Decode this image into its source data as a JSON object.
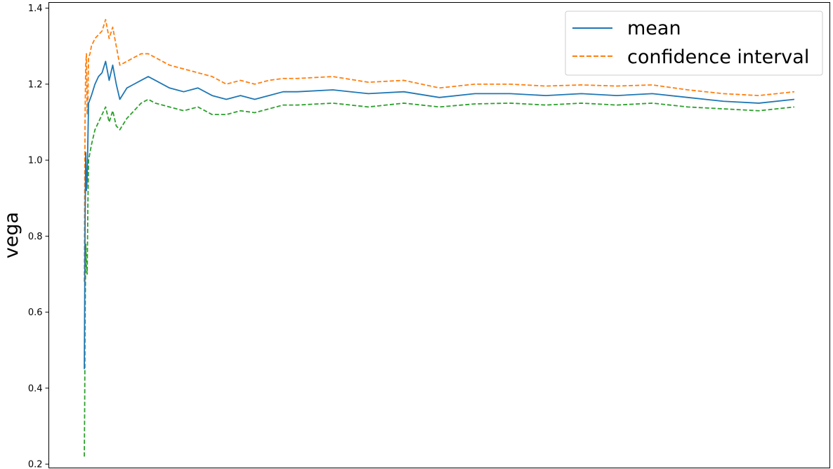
{
  "chart_data": {
    "type": "line",
    "title": "",
    "xlabel": "",
    "ylabel": "vega",
    "ylim": [
      0.19,
      1.415
    ],
    "xlim": [
      -500,
      10500
    ],
    "yticks": [
      0.2,
      0.4,
      0.6,
      0.8,
      1.0,
      1.2,
      1.4
    ],
    "ytick_labels": [
      "0.2",
      "0.4",
      "0.6",
      "0.8",
      "1.0",
      "1.2",
      "1.4"
    ],
    "xticks_visible": false,
    "grid": false,
    "legend": {
      "position": "top-right",
      "entries": [
        "mean",
        "confidence interval"
      ]
    },
    "x": [
      0,
      5,
      10,
      20,
      30,
      40,
      50,
      60,
      80,
      100,
      150,
      200,
      250,
      300,
      350,
      400,
      450,
      500,
      600,
      700,
      800,
      900,
      1000,
      1200,
      1400,
      1600,
      1800,
      2000,
      2200,
      2400,
      2600,
      2800,
      3000,
      3500,
      4000,
      4500,
      5000,
      5500,
      6000,
      6500,
      7000,
      7500,
      8000,
      8500,
      9000,
      9500,
      10000
    ],
    "series": [
      {
        "name": "mean",
        "style": "solid",
        "color": "#1f77b4",
        "values": [
          0.45,
          0.62,
          0.82,
          1.02,
          0.92,
          0.95,
          1.05,
          1.15,
          1.16,
          1.17,
          1.2,
          1.22,
          1.23,
          1.26,
          1.21,
          1.25,
          1.2,
          1.16,
          1.19,
          1.2,
          1.21,
          1.22,
          1.21,
          1.19,
          1.18,
          1.19,
          1.17,
          1.16,
          1.17,
          1.16,
          1.17,
          1.18,
          1.18,
          1.185,
          1.175,
          1.18,
          1.165,
          1.175,
          1.175,
          1.17,
          1.175,
          1.17,
          1.175,
          1.165,
          1.155,
          1.15,
          1.16
        ]
      },
      {
        "name": "confidence interval",
        "style": "dashed",
        "color": "#ff7f0e",
        "values": [
          0.68,
          0.88,
          1.1,
          1.25,
          1.28,
          1.12,
          1.15,
          1.27,
          1.28,
          1.3,
          1.32,
          1.33,
          1.34,
          1.37,
          1.32,
          1.35,
          1.3,
          1.25,
          1.26,
          1.27,
          1.28,
          1.28,
          1.27,
          1.25,
          1.24,
          1.23,
          1.22,
          1.2,
          1.21,
          1.2,
          1.21,
          1.215,
          1.215,
          1.22,
          1.205,
          1.21,
          1.19,
          1.2,
          1.2,
          1.195,
          1.198,
          1.195,
          1.198,
          1.185,
          1.175,
          1.17,
          1.18
        ]
      },
      {
        "name": "",
        "style": "dashed",
        "color": "#2ca02c",
        "values": [
          0.22,
          0.35,
          0.55,
          0.78,
          0.72,
          0.7,
          0.88,
          1.0,
          1.02,
          1.04,
          1.08,
          1.1,
          1.12,
          1.14,
          1.1,
          1.13,
          1.09,
          1.08,
          1.11,
          1.13,
          1.15,
          1.16,
          1.15,
          1.14,
          1.13,
          1.14,
          1.12,
          1.12,
          1.13,
          1.125,
          1.135,
          1.145,
          1.145,
          1.15,
          1.14,
          1.15,
          1.14,
          1.148,
          1.15,
          1.145,
          1.15,
          1.145,
          1.15,
          1.14,
          1.135,
          1.13,
          1.14
        ]
      }
    ]
  }
}
